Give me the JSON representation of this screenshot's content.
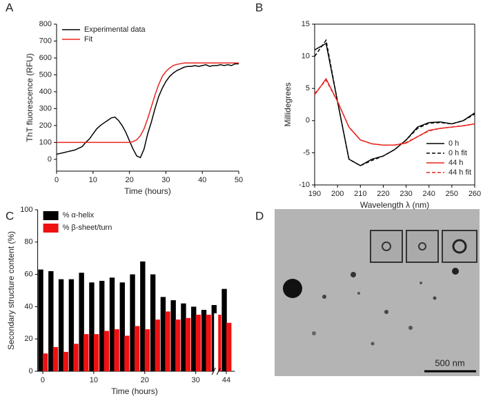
{
  "chart_data": [
    {
      "panel_label": "A",
      "type": "line",
      "xlabel": "Time (hours)",
      "ylabel": "ThT fluorescence (RFU)",
      "x": [
        0,
        1,
        2,
        3,
        4,
        5,
        6,
        7,
        8,
        9,
        10,
        11,
        12,
        13,
        14,
        15,
        16,
        17,
        18,
        19,
        20,
        21,
        22,
        23,
        24,
        25,
        26,
        27,
        28,
        29,
        30,
        31,
        32,
        33,
        34,
        35,
        36,
        37,
        38,
        39,
        40,
        41,
        42,
        43,
        44,
        45,
        46,
        47,
        48,
        49,
        50
      ],
      "series": [
        {
          "name": "Experimental data",
          "color": "#000000",
          "dashed": false,
          "values": [
            30,
            35,
            40,
            45,
            50,
            55,
            65,
            75,
            100,
            120,
            150,
            180,
            200,
            215,
            230,
            245,
            250,
            230,
            200,
            160,
            110,
            60,
            20,
            10,
            60,
            150,
            220,
            300,
            370,
            420,
            460,
            490,
            510,
            525,
            535,
            545,
            550,
            550,
            555,
            550,
            555,
            560,
            550,
            555,
            555,
            560,
            555,
            560,
            555,
            565,
            565
          ]
        },
        {
          "name": "Fit",
          "color": "#e8221d",
          "dashed": false,
          "values": [
            100,
            100,
            100,
            100,
            100,
            100,
            100,
            100,
            100,
            100,
            100,
            100,
            100,
            100,
            100,
            100,
            100,
            100,
            100,
            100,
            100,
            105,
            115,
            140,
            180,
            240,
            310,
            380,
            440,
            490,
            520,
            540,
            555,
            562,
            566,
            570,
            570,
            570,
            570,
            570,
            570,
            570,
            570,
            570,
            570,
            570,
            570,
            570,
            570,
            570,
            570
          ]
        }
      ],
      "xlim": [
        0,
        50
      ],
      "xticks": [
        0,
        10,
        20,
        30,
        40,
        50
      ],
      "ylim": [
        -70,
        800
      ],
      "yticks": [
        0,
        100,
        200,
        300,
        400,
        500,
        600,
        700,
        800
      ],
      "legend": "top-left",
      "frame": false
    },
    {
      "panel_label": "B",
      "type": "line",
      "xlabel": "Wavelength λ (nm)",
      "ylabel": "Millidegrees",
      "x": [
        190,
        195,
        200,
        205,
        210,
        215,
        220,
        225,
        230,
        235,
        240,
        245,
        250,
        255,
        260
      ],
      "series": [
        {
          "name": "0 h",
          "color": "#000000",
          "dashed": false,
          "values": [
            11,
            12,
            3,
            -6,
            -7,
            -6,
            -5.5,
            -4.5,
            -3,
            -1,
            -0.3,
            -0.2,
            -0.5,
            0,
            1.2
          ]
        },
        {
          "name": "0 h fit",
          "color": "#000000",
          "dashed": true,
          "values": [
            10,
            12.5,
            3,
            -6,
            -7,
            -6.2,
            -5.5,
            -4.5,
            -3,
            -1.2,
            -0.4,
            -0.3,
            -0.5,
            0,
            1
          ]
        },
        {
          "name": "44 h",
          "color": "#e8221d",
          "dashed": false,
          "values": [
            4,
            6.5,
            3,
            -1,
            -3,
            -3.6,
            -3.8,
            -3.8,
            -3.5,
            -2.5,
            -1.5,
            -1.2,
            -1,
            -0.8,
            -0.5
          ]
        },
        {
          "name": "44 h fit",
          "color": "#e8221d",
          "dashed": true,
          "values": [
            4.2,
            6.3,
            3,
            -1,
            -3,
            -3.6,
            -3.8,
            -3.8,
            -3.4,
            -2.5,
            -1.6,
            -1.2,
            -1,
            -0.8,
            -0.5
          ]
        }
      ],
      "xlim": [
        190,
        260
      ],
      "xticks": [
        190,
        200,
        210,
        220,
        230,
        240,
        250,
        260
      ],
      "ylim": [
        -10,
        15
      ],
      "yticks": [
        -10,
        -5,
        0,
        5,
        10,
        15
      ],
      "legend": "bottom-right",
      "frame": true
    },
    {
      "panel_label": "C",
      "type": "bar",
      "xlabel": "Time (hours)",
      "ylabel": "Secondary structure content (%)",
      "categories": [
        "0",
        null,
        null,
        null,
        null,
        "10",
        null,
        null,
        null,
        null,
        "20",
        null,
        null,
        null,
        null,
        "30",
        null,
        null,
        "44"
      ],
      "series": [
        {
          "name": "% α-helix",
          "color": "#000000",
          "values": [
            63,
            62,
            57,
            57,
            61,
            55,
            56,
            58,
            55,
            60,
            68,
            60,
            46,
            44,
            42,
            40,
            38,
            41,
            51
          ]
        },
        {
          "name": "% β-sheet/turn",
          "color": "#ee1111",
          "values": [
            11,
            15,
            12,
            17,
            23,
            23,
            25,
            26,
            22,
            28,
            26,
            32,
            37,
            32,
            33,
            35,
            35,
            35,
            30
          ]
        }
      ],
      "ylim": [
        0,
        100
      ],
      "yticks": [
        0,
        20,
        40,
        60,
        80,
        100
      ],
      "legend": "top-left",
      "frame": false
    }
  ],
  "image": {
    "panel_label": "D",
    "scale_bar": "500 nm"
  }
}
